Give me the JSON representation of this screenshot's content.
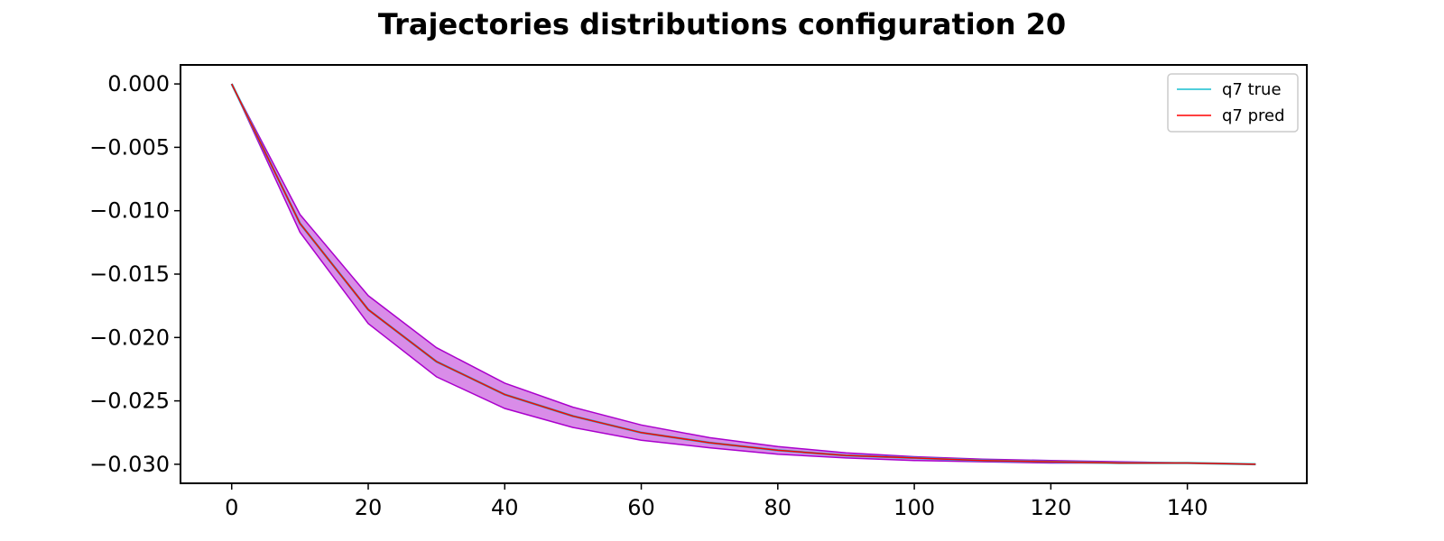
{
  "chart_data": {
    "type": "line",
    "title": "Trajectories distributions configuration  20",
    "xlabel": "",
    "ylabel": "",
    "xlim": [
      -7.5,
      157.5
    ],
    "ylim": [
      -0.0315,
      0.0015
    ],
    "xticks": [
      0,
      20,
      40,
      60,
      80,
      100,
      120,
      140
    ],
    "xtick_labels": [
      "0",
      "20",
      "40",
      "60",
      "80",
      "100",
      "120",
      "140"
    ],
    "yticks": [
      0.0,
      -0.005,
      -0.01,
      -0.015,
      -0.02,
      -0.025,
      -0.03
    ],
    "ytick_labels": [
      "0.000",
      "−0.005",
      "−0.010",
      "−0.015",
      "−0.020",
      "−0.025",
      "−0.030"
    ],
    "grid": false,
    "legend_position": "top-right",
    "x": [
      0,
      10,
      20,
      30,
      40,
      50,
      60,
      70,
      80,
      90,
      100,
      110,
      120,
      130,
      140,
      150
    ],
    "series": [
      {
        "name": "q7 true",
        "color": "#17becf",
        "values": [
          0.0,
          -0.011,
          -0.0178,
          -0.0219,
          -0.0245,
          -0.0262,
          -0.0275,
          -0.0283,
          -0.0289,
          -0.0293,
          -0.0295,
          -0.0297,
          -0.0298,
          -0.0299,
          -0.0299,
          -0.03
        ]
      },
      {
        "name": "q7 pred",
        "color": "#ff0000",
        "values": [
          0.0,
          -0.011,
          -0.0178,
          -0.0219,
          -0.0245,
          -0.0262,
          -0.0275,
          -0.0283,
          -0.0289,
          -0.0293,
          -0.0295,
          -0.0297,
          -0.0298,
          -0.0299,
          -0.0299,
          -0.03
        ]
      }
    ],
    "band": {
      "color": "#aa00cc",
      "upper": [
        0.0,
        -0.0103,
        -0.0167,
        -0.0208,
        -0.0236,
        -0.0255,
        -0.0269,
        -0.0279,
        -0.0286,
        -0.0291,
        -0.0294,
        -0.0296,
        -0.0297,
        -0.0298,
        -0.0299,
        -0.03
      ],
      "lower": [
        0.0,
        -0.0117,
        -0.0189,
        -0.0231,
        -0.0256,
        -0.0271,
        -0.0281,
        -0.0287,
        -0.0292,
        -0.0295,
        -0.0297,
        -0.0298,
        -0.0299,
        -0.0299,
        -0.0299,
        -0.03
      ]
    }
  }
}
